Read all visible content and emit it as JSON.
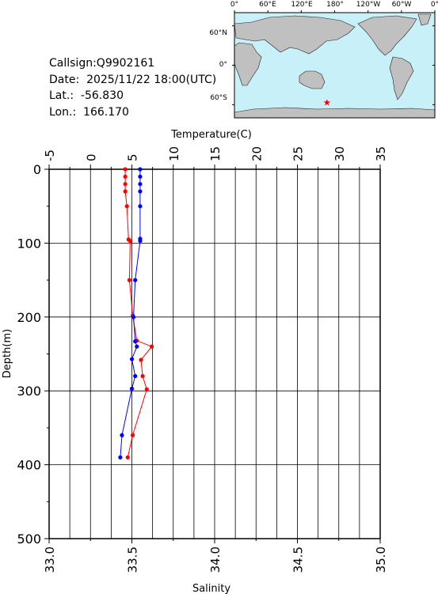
{
  "info": {
    "callsign": "Callsign:Q9902161",
    "date": "Date:  2025/11/22 18:00(UTC)",
    "lat": "Lat.:  -56.830",
    "lon": "Lon.:  166.170"
  },
  "map": {
    "top_labels": [
      "0°",
      "60°E",
      "120°E",
      "180°",
      "120°W",
      "60°W",
      "0°"
    ],
    "left_labels": [
      "60°N",
      "0°",
      "60°S"
    ],
    "ocean_color": "#c8f0f8",
    "land_color": "#c0c0c0",
    "marker_color": "#ff0000",
    "marker": "star-icon",
    "station_lon": 166.17,
    "station_lat": -56.83
  },
  "chart_data": {
    "type": "line",
    "x_top_label": "Temperature(C)",
    "x_bottom_label": "Salinity",
    "ylabel": "Depth(m)",
    "temperature_ticks": [
      "-5",
      "0",
      "5",
      "10",
      "15",
      "20",
      "25",
      "30",
      "35"
    ],
    "salinity_ticks": [
      "33.0",
      "33.5",
      "34.0",
      "34.5",
      "35.0"
    ],
    "depth_ticks": [
      "0",
      "100",
      "200",
      "300",
      "400",
      "500"
    ],
    "temperature_range": [
      -5,
      35
    ],
    "salinity_range": [
      33.0,
      35.0
    ],
    "depth_range": [
      0,
      500
    ],
    "series": [
      {
        "quantity": "temperature",
        "color": "#ff0000",
        "points": [
          {
            "depth": 0,
            "value": 4.2
          },
          {
            "depth": 10,
            "value": 4.2
          },
          {
            "depth": 20,
            "value": 4.2
          },
          {
            "depth": 30,
            "value": 4.2
          },
          {
            "depth": 50,
            "value": 4.4
          },
          {
            "depth": 95,
            "value": 4.6
          },
          {
            "depth": 97,
            "value": 4.8
          },
          {
            "depth": 150,
            "value": 4.7
          },
          {
            "depth": 198,
            "value": 5.1
          },
          {
            "depth": 232,
            "value": 5.6
          },
          {
            "depth": 240,
            "value": 7.4
          },
          {
            "depth": 258,
            "value": 6.1
          },
          {
            "depth": 280,
            "value": 6.3
          },
          {
            "depth": 298,
            "value": 6.8
          },
          {
            "depth": 360,
            "value": 5.1
          },
          {
            "depth": 390,
            "value": 4.5
          }
        ]
      },
      {
        "quantity": "salinity",
        "color": "#0000ff",
        "points": [
          {
            "depth": 0,
            "value": 33.55
          },
          {
            "depth": 10,
            "value": 33.55
          },
          {
            "depth": 20,
            "value": 33.55
          },
          {
            "depth": 30,
            "value": 33.55
          },
          {
            "depth": 50,
            "value": 33.55
          },
          {
            "depth": 94,
            "value": 33.55
          },
          {
            "depth": 97,
            "value": 33.55
          },
          {
            "depth": 150,
            "value": 33.52
          },
          {
            "depth": 200,
            "value": 33.51
          },
          {
            "depth": 233,
            "value": 33.52
          },
          {
            "depth": 240,
            "value": 33.53
          },
          {
            "depth": 257,
            "value": 33.5
          },
          {
            "depth": 280,
            "value": 33.52
          },
          {
            "depth": 297,
            "value": 33.5
          },
          {
            "depth": 360,
            "value": 33.44
          },
          {
            "depth": 390,
            "value": 33.43
          }
        ]
      }
    ],
    "grid": true
  }
}
